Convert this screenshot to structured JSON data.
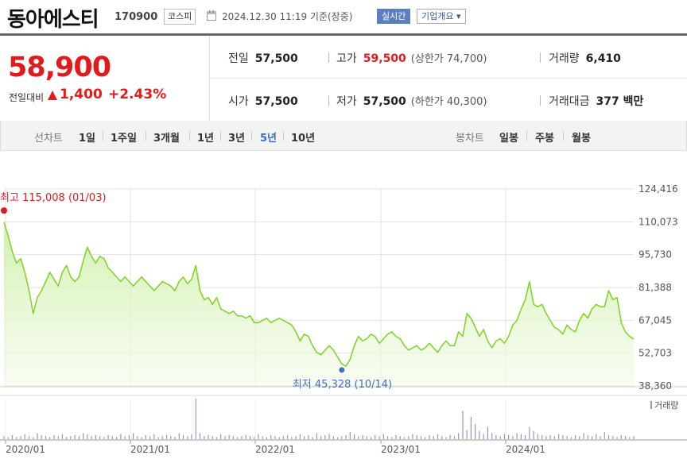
{
  "header": {
    "name": "동아에스티",
    "code": "170900",
    "market": "코스피",
    "timestamp": "2024.12.30 11:19 기준(장중)",
    "realtime_label": "실시간",
    "company_overview_label": "기업개요 ▾"
  },
  "quote": {
    "price": "58,900",
    "change_label": "전일대비",
    "change_value": "1,400",
    "change_rate": "+2.43%",
    "prev_close": {
      "label": "전일",
      "value": "57,500"
    },
    "high": {
      "label": "고가",
      "value": "59,500",
      "limit_text": "(상한가 74,700)"
    },
    "volume": {
      "label": "거래량",
      "value": "6,410"
    },
    "open": {
      "label": "시가",
      "value": "57,500"
    },
    "low": {
      "label": "저가",
      "value": "57,500",
      "limit_text": "(하한가 40,300)"
    },
    "trade_amount": {
      "label": "거래대금",
      "value": "377 백만"
    }
  },
  "toolbar": {
    "line_chart_label": "선차트",
    "periods": [
      "1일",
      "1주일",
      "3개월",
      "1년",
      "3년",
      "5년",
      "10년"
    ],
    "active_period": "5년",
    "candle_chart_label": "봉차트",
    "candle_periods": [
      "일봉",
      "주봉",
      "월봉"
    ]
  },
  "colors": {
    "up": "#e31a1c",
    "line": "#7ed321",
    "fill_top": "#cdf0a8",
    "active": "#3b6fc4",
    "volume": "#a090c0"
  },
  "chart_data": {
    "type": "area",
    "y_ticks": [
      "124,416",
      "110,073",
      "95,730",
      "81,388",
      "67,045",
      "52,703",
      "38,360"
    ],
    "ylim": [
      38360,
      124416
    ],
    "x_ticks": [
      "2020/01",
      "2021/01",
      "2022/01",
      "2023/01",
      "2024/01"
    ],
    "max_annotation": "최고 115,008 (01/03)",
    "min_annotation": "최저 45,328 (10/14)",
    "volume_legend": "거래량",
    "series": [
      {
        "values": [
          110000,
          104000,
          97000,
          92000,
          94000,
          88000,
          80000,
          70000,
          77000,
          80000,
          84000,
          88000,
          85000,
          82000,
          88000,
          91000,
          86000,
          84000,
          86000,
          93000,
          99000,
          95000,
          92000,
          95000,
          94000,
          90000,
          88000,
          86000,
          84000,
          86000,
          84000,
          82000,
          84000,
          86000,
          84000,
          82000,
          80000,
          82000,
          84000,
          83000,
          82000,
          80000,
          84000,
          86000,
          83000,
          85000,
          91000,
          80000,
          76000,
          77000,
          74000,
          77000,
          72000,
          71000,
          70000,
          71000,
          69000,
          69000,
          68000,
          69000,
          66000,
          66000,
          67000,
          68000,
          66000,
          67000,
          68000,
          67000,
          66000,
          65000,
          62000,
          58000,
          61000,
          60000,
          56000,
          53000,
          52000,
          54000,
          56000,
          54000,
          51000,
          48000,
          47000,
          50000,
          56000,
          60000,
          58000,
          59000,
          61000,
          60000,
          57000,
          59000,
          61000,
          62000,
          60000,
          59000,
          56000,
          54000,
          55000,
          56000,
          54000,
          55000,
          57000,
          55000,
          53000,
          56000,
          58000,
          56000,
          56000,
          62000,
          60000,
          70000,
          68000,
          64000,
          60000,
          63000,
          58000,
          55000,
          58000,
          59000,
          57000,
          60000,
          65000,
          67000,
          72000,
          76000,
          84000,
          74000,
          73000,
          74000,
          70000,
          67000,
          64000,
          63000,
          61000,
          65000,
          63000,
          62000,
          67000,
          70000,
          68000,
          72000,
          74000,
          73000,
          73000,
          80000,
          76000,
          77000,
          66000,
          62000,
          60000,
          58900
        ],
        "max_point": {
          "index": 0,
          "value": 115008
        },
        "min_point": {
          "index": 81,
          "value": 45328
        }
      }
    ],
    "volume_values": [
      3,
      2,
      4,
      2,
      3,
      5,
      3,
      2,
      6,
      4,
      3,
      2,
      4,
      3,
      5,
      2,
      3,
      4,
      3,
      6,
      5,
      3,
      4,
      3,
      2,
      4,
      3,
      2,
      5,
      3,
      4,
      6,
      3,
      2,
      4,
      3,
      5,
      2,
      3,
      4,
      3,
      2,
      6,
      4,
      3,
      5,
      40,
      6,
      3,
      4,
      3,
      2,
      5,
      3,
      4,
      3,
      2,
      3,
      4,
      3,
      2,
      5,
      3,
      2,
      4,
      3,
      2,
      3,
      4,
      2,
      3,
      5,
      3,
      4,
      2,
      6,
      3,
      4,
      5,
      3,
      2,
      3,
      4,
      7,
      5,
      3,
      4,
      3,
      2,
      4,
      3,
      5,
      3,
      2,
      4,
      3,
      2,
      3,
      5,
      4,
      3,
      2,
      4,
      3,
      5,
      3,
      2,
      4,
      3,
      6,
      28,
      9,
      22,
      15,
      8,
      5,
      12,
      6,
      4,
      3,
      5,
      4,
      3,
      6,
      5,
      4,
      12,
      8,
      5,
      4,
      3,
      4,
      3,
      5,
      4,
      3,
      2,
      4,
      3,
      6,
      4,
      3,
      5,
      3,
      7,
      4,
      3,
      2,
      4,
      3,
      2,
      3
    ]
  }
}
